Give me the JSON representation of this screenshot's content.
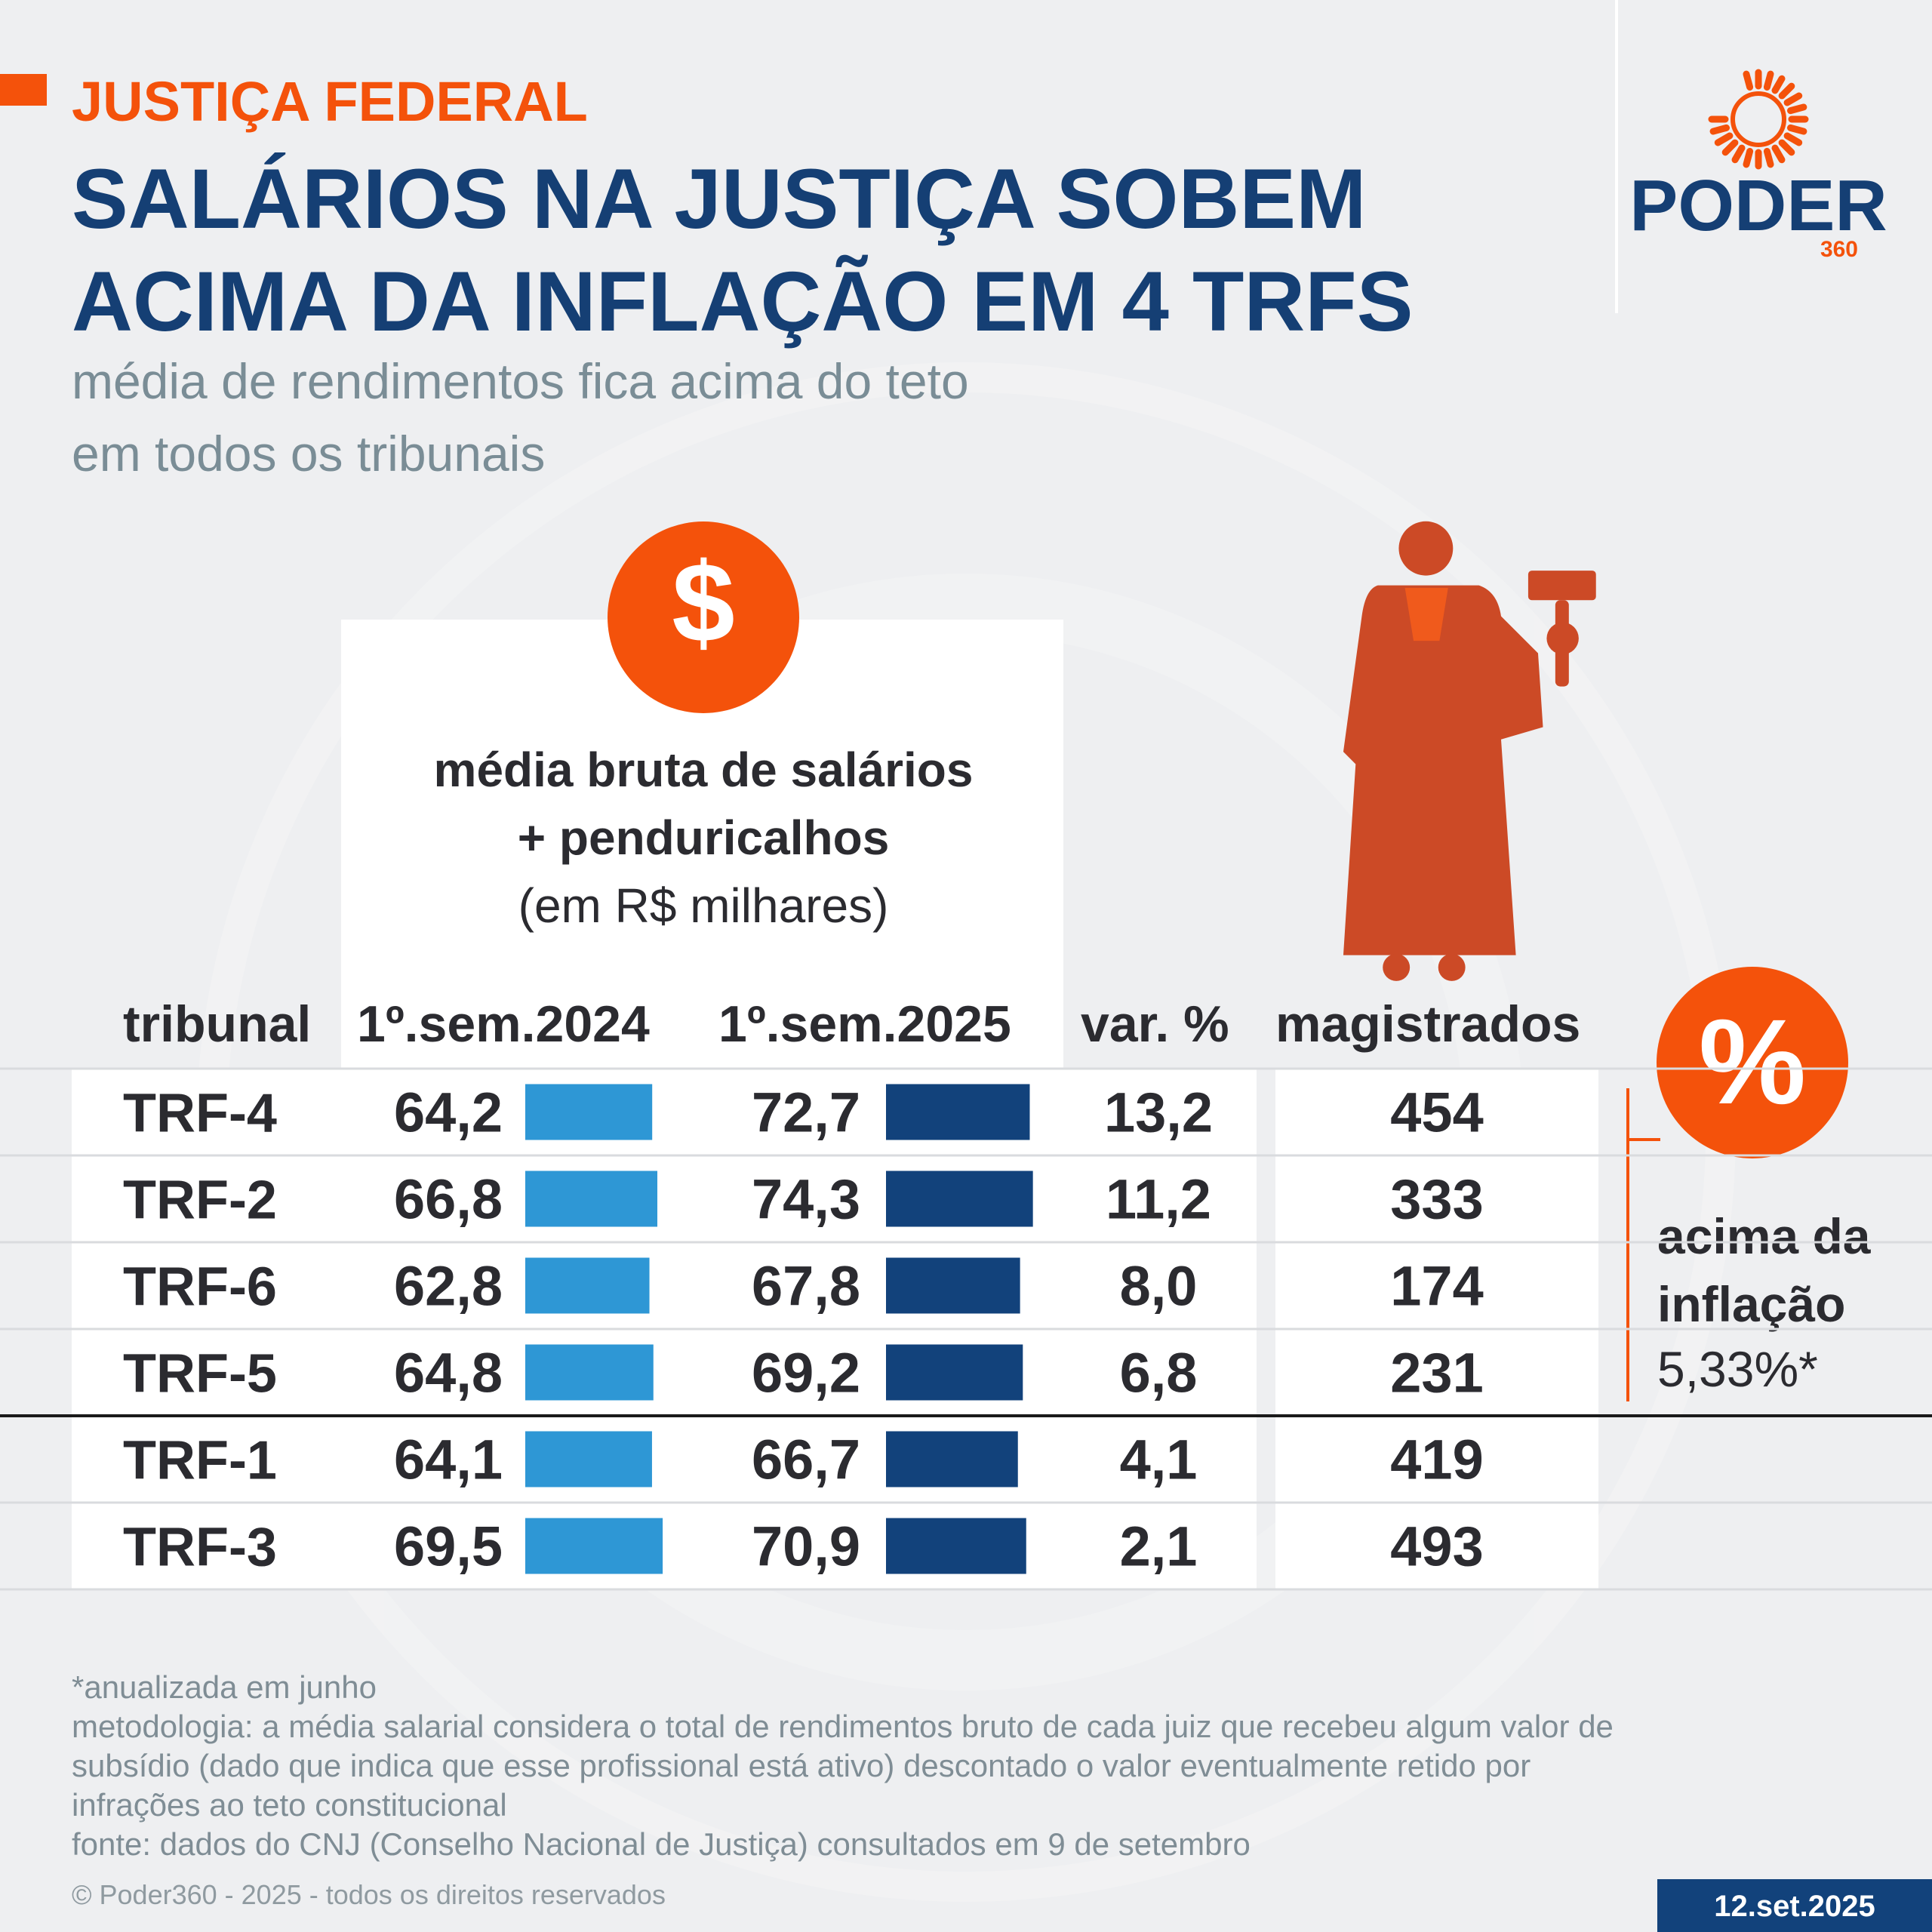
{
  "header": {
    "kicker": "JUSTIÇA FEDERAL",
    "title": [
      "SALÁRIOS NA JUSTIÇA SOBEM",
      "ACIMA DA INFLAÇÃO EM 4 TRFS"
    ],
    "subtitle": [
      "média de rendimentos fica acima do teto",
      "em todos os tribunais"
    ]
  },
  "logo": {
    "name": "PODER",
    "number": "360"
  },
  "chart_data": {
    "type": "table-bar",
    "symbol": "$",
    "column_note": [
      "média bruta de salários",
      "+ penduricalhos",
      "(em R$ milhares)"
    ],
    "category_header": "tribunal",
    "categories": [
      "TRF-4",
      "TRF-2",
      "TRF-6",
      "TRF-5",
      "TRF-1",
      "TRF-3"
    ],
    "xlim": [
      0,
      100
    ],
    "series": [
      {
        "name": "1º.sem.2024",
        "color": "#2e97d5",
        "values": [
          64.2,
          66.8,
          62.8,
          64.8,
          64.1,
          69.5
        ],
        "value_labels": [
          "64,2",
          "66,8",
          "62,8",
          "64,8",
          "64,1",
          "69,5"
        ]
      },
      {
        "name": "1º.sem.2025",
        "color": "#12427b",
        "values": [
          72.7,
          74.3,
          67.8,
          69.2,
          66.7,
          70.9
        ],
        "value_labels": [
          "72,7",
          "74,3",
          "67,8",
          "69,2",
          "66,7",
          "70,9"
        ]
      }
    ],
    "columns": [
      {
        "name": "var. %",
        "values": [
          13.2,
          11.2,
          8.0,
          6.8,
          4.1,
          2.1
        ],
        "value_labels": [
          "13,2",
          "11,2",
          "8,0",
          "6,8",
          "4,1",
          "2,1"
        ]
      },
      {
        "name": "magistrados",
        "values": [
          454,
          333,
          174,
          231,
          419,
          493
        ]
      }
    ],
    "annotation": {
      "symbol": "%",
      "label": [
        "acima da",
        "inflação"
      ],
      "value": 5.33,
      "value_label": "5,33%*"
    }
  },
  "footer": {
    "notes": [
      "*anualizada em junho",
      "metodologia: a média salarial considera o total de rendimentos bruto de cada juiz que recebeu algum valor de",
      "subsídio (dado que indica que esse profissional está ativo) descontado o valor eventualmente retido por",
      "infrações ao teto constitucional",
      "fonte: dados do CNJ (Conselho Nacional de Justiça) consultados em 9 de setembro"
    ],
    "copyright": "© Poder360 - 2025 - todos os direitos reservados",
    "date": "12.set.2025"
  }
}
